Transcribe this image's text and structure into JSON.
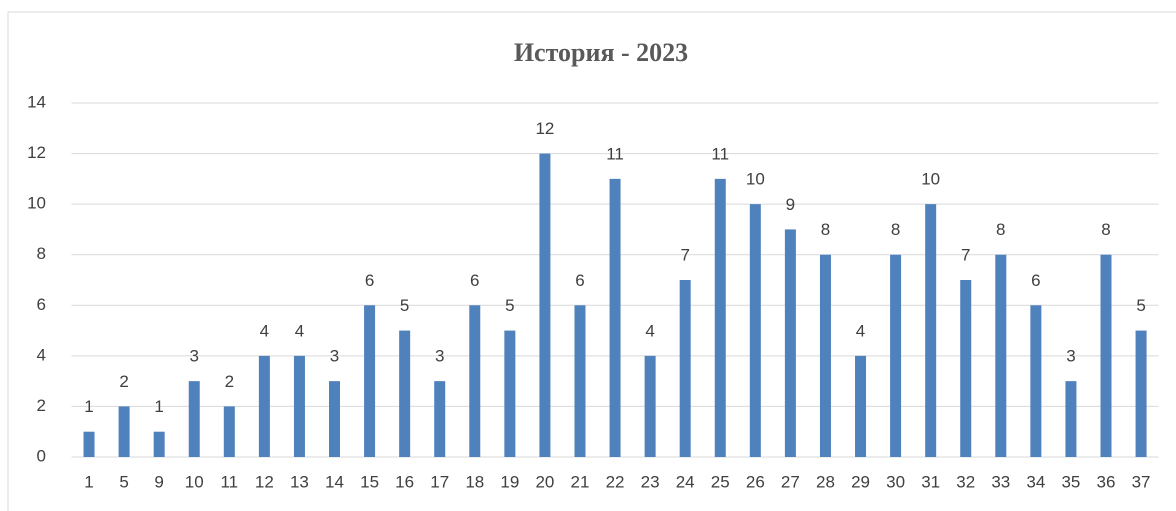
{
  "chart_data": {
    "type": "bar",
    "title": "История - 2023",
    "categories": [
      "1",
      "5",
      "9",
      "10",
      "11",
      "12",
      "13",
      "14",
      "15",
      "16",
      "17",
      "18",
      "19",
      "20",
      "21",
      "22",
      "23",
      "24",
      "25",
      "26",
      "27",
      "28",
      "29",
      "30",
      "31",
      "32",
      "33",
      "34",
      "35",
      "36",
      "37"
    ],
    "values": [
      1,
      2,
      1,
      3,
      2,
      4,
      4,
      3,
      6,
      5,
      3,
      6,
      5,
      12,
      6,
      11,
      4,
      7,
      11,
      10,
      9,
      8,
      4,
      8,
      10,
      7,
      8,
      6,
      3,
      8,
      5
    ],
    "color": "#4f81bd",
    "ylim": [
      0,
      14
    ],
    "yticks": [
      0,
      2,
      4,
      6,
      8,
      10,
      12,
      14
    ],
    "grid": true,
    "data_labels": true
  }
}
